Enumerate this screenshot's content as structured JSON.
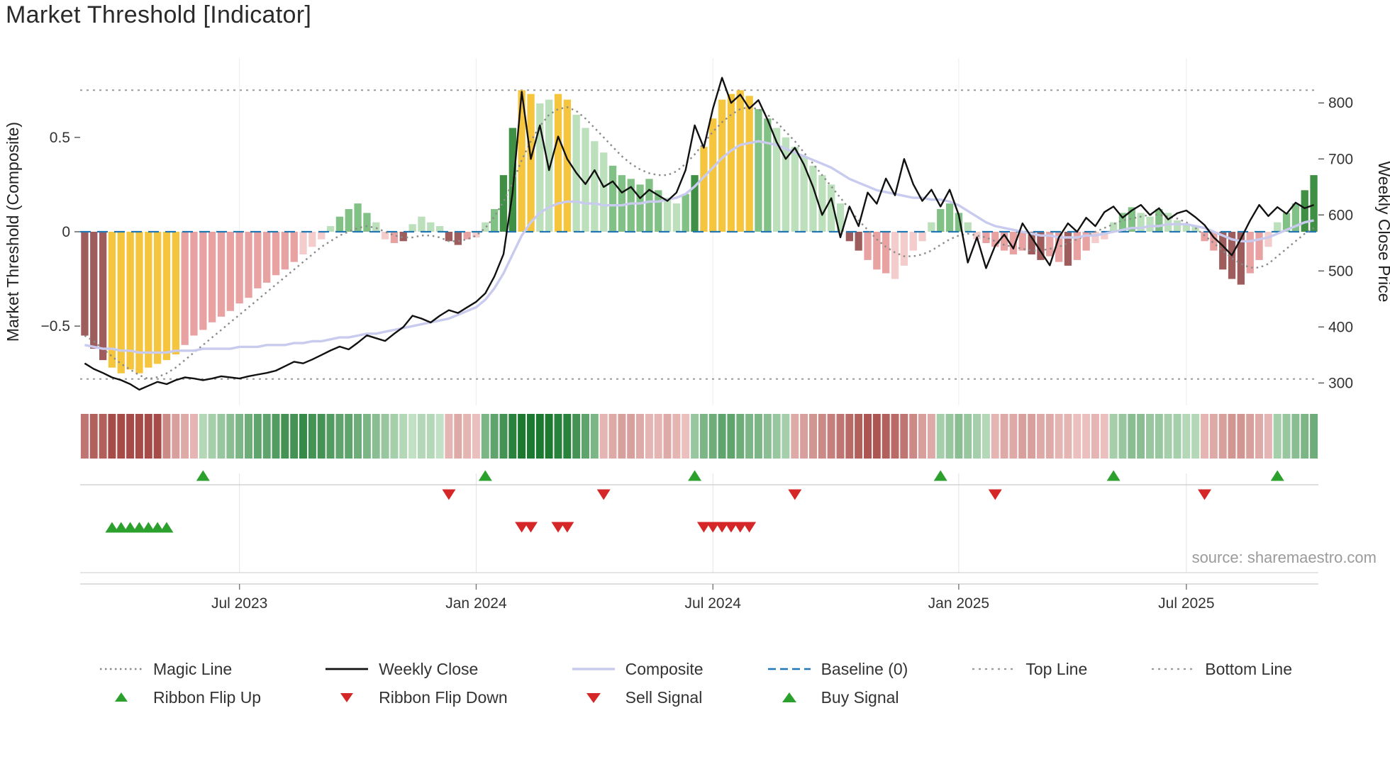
{
  "title": "Market Threshold [Indicator]",
  "source_text": "source: sharemaestro.com",
  "palette": {
    "magic_line": "#8a8a8a",
    "weekly_close": "#111111",
    "composite": "#c9cbee",
    "baseline": "#2077b4",
    "top_bottom_line": "#999999",
    "buy": "#2ca02c",
    "sell": "#d62728",
    "bar_dark_red": "#9e5c5c",
    "bar_red": "#e8a2a2",
    "bar_light_red": "#f3cccb",
    "bar_yellow": "#f5c53d",
    "bar_dark_green": "#3f8f44",
    "bar_green": "#82c185",
    "bar_light_green": "#bcdfbc"
  },
  "chart_data": {
    "type": "bar",
    "title": "Market Threshold [Indicator]",
    "left_axis": {
      "label": "Market Threshold (Composite)",
      "range": [
        -0.92,
        0.92
      ],
      "ticks": [
        {
          "v": 0.5,
          "label": "0.5"
        },
        {
          "v": 0,
          "label": "0"
        },
        {
          "v": -0.5,
          "label": "−0.5"
        }
      ]
    },
    "right_axis": {
      "label": "Weekly Close Price",
      "range": [
        260,
        880
      ],
      "ticks": [
        {
          "v": 800,
          "label": "800"
        },
        {
          "v": 700,
          "label": "700"
        },
        {
          "v": 600,
          "label": "600"
        },
        {
          "v": 500,
          "label": "500"
        },
        {
          "v": 400,
          "label": "400"
        },
        {
          "v": 300,
          "label": "300"
        }
      ]
    },
    "x_ticks": [
      {
        "label": "Jul 2023",
        "index": 17
      },
      {
        "label": "Jan 2024",
        "index": 43
      },
      {
        "label": "Jul 2024",
        "index": 69
      },
      {
        "label": "Jan 2025",
        "index": 96
      },
      {
        "label": "Jul 2025",
        "index": 121
      }
    ],
    "baseline": 0,
    "top_line": 0.75,
    "bottom_line": -0.78,
    "threshold_bars": {
      "values": [
        -0.55,
        -0.62,
        -0.68,
        -0.72,
        -0.75,
        -0.73,
        -0.75,
        -0.72,
        -0.7,
        -0.68,
        -0.65,
        -0.6,
        -0.55,
        -0.52,
        -0.48,
        -0.45,
        -0.42,
        -0.38,
        -0.35,
        -0.3,
        -0.27,
        -0.23,
        -0.2,
        -0.16,
        -0.12,
        -0.08,
        -0.04,
        0.03,
        0.08,
        0.12,
        0.15,
        0.1,
        0.05,
        -0.04,
        -0.06,
        -0.05,
        0.04,
        0.08,
        0.05,
        0.03,
        -0.05,
        -0.07,
        -0.04,
        -0.03,
        0.05,
        0.12,
        0.3,
        0.55,
        0.75,
        0.73,
        0.68,
        0.7,
        0.73,
        0.7,
        0.62,
        0.55,
        0.48,
        0.42,
        0.35,
        0.3,
        0.28,
        0.25,
        0.28,
        0.22,
        0.18,
        0.15,
        0.2,
        0.3,
        0.45,
        0.6,
        0.7,
        0.73,
        0.75,
        0.72,
        0.65,
        0.6,
        0.55,
        0.5,
        0.45,
        0.4,
        0.35,
        0.3,
        0.25,
        0.15,
        -0.05,
        -0.1,
        -0.15,
        -0.2,
        -0.22,
        -0.25,
        -0.18,
        -0.1,
        -0.05,
        0.05,
        0.12,
        0.15,
        0.1,
        0.05,
        -0.04,
        -0.06,
        -0.08,
        -0.1,
        -0.12,
        -0.1,
        -0.12,
        -0.15,
        -0.13,
        -0.16,
        -0.18,
        -0.15,
        -0.1,
        -0.06,
        -0.04,
        0.05,
        0.1,
        0.13,
        0.1,
        0.08,
        0.12,
        0.1,
        0.06,
        0.04,
        0.03,
        -0.05,
        -0.1,
        -0.2,
        -0.25,
        -0.28,
        -0.22,
        -0.15,
        -0.08,
        0.05,
        0.1,
        0.15,
        0.22,
        0.3
      ],
      "colors": [
        "dr",
        "dr",
        "dr",
        "y",
        "y",
        "y",
        "y",
        "y",
        "y",
        "y",
        "y",
        "r",
        "r",
        "r",
        "r",
        "r",
        "r",
        "r",
        "r",
        "r",
        "r",
        "r",
        "r",
        "r",
        "lr",
        "lr",
        "lr",
        "lg",
        "g",
        "g",
        "g",
        "g",
        "lg",
        "lr",
        "r",
        "dr",
        "lg",
        "lg",
        "lg",
        "lg",
        "dr",
        "dr",
        "r",
        "lr",
        "lg",
        "g",
        "dg",
        "dg",
        "y",
        "y",
        "lg",
        "lg",
        "y",
        "y",
        "lg",
        "lg",
        "lg",
        "lg",
        "g",
        "g",
        "g",
        "g",
        "g",
        "g",
        "lg",
        "lg",
        "g",
        "dg",
        "y",
        "y",
        "y",
        "y",
        "y",
        "y",
        "g",
        "g",
        "lg",
        "lg",
        "lg",
        "lg",
        "lg",
        "lg",
        "lg",
        "lg",
        "dr",
        "dr",
        "r",
        "r",
        "r",
        "lr",
        "lr",
        "lr",
        "lr",
        "lg",
        "g",
        "g",
        "g",
        "lg",
        "lr",
        "r",
        "r",
        "r",
        "r",
        "r",
        "dr",
        "dr",
        "r",
        "r",
        "dr",
        "r",
        "r",
        "lr",
        "lr",
        "lg",
        "g",
        "g",
        "lg",
        "lg",
        "g",
        "lg",
        "lg",
        "lg",
        "lg",
        "r",
        "r",
        "dr",
        "dr",
        "dr",
        "r",
        "r",
        "lr",
        "lg",
        "g",
        "g",
        "dg",
        "dg"
      ]
    },
    "weekly_close": [
      335,
      325,
      318,
      310,
      305,
      298,
      288,
      295,
      302,
      298,
      305,
      310,
      308,
      305,
      308,
      312,
      310,
      308,
      312,
      315,
      318,
      322,
      330,
      338,
      335,
      342,
      350,
      358,
      365,
      360,
      372,
      385,
      380,
      375,
      388,
      400,
      420,
      415,
      408,
      420,
      430,
      425,
      435,
      445,
      460,
      490,
      530,
      640,
      820,
      700,
      760,
      680,
      740,
      700,
      675,
      655,
      680,
      650,
      660,
      640,
      650,
      630,
      645,
      635,
      625,
      640,
      680,
      760,
      720,
      790,
      845,
      800,
      815,
      790,
      805,
      770,
      730,
      700,
      720,
      690,
      650,
      600,
      630,
      560,
      615,
      580,
      640,
      620,
      665,
      635,
      700,
      655,
      625,
      645,
      615,
      645,
      600,
      515,
      560,
      505,
      545,
      565,
      540,
      585,
      560,
      535,
      510,
      560,
      585,
      570,
      595,
      580,
      605,
      615,
      595,
      608,
      618,
      600,
      612,
      592,
      603,
      608,
      596,
      582,
      560,
      545,
      528,
      558,
      590,
      618,
      598,
      614,
      602,
      622,
      612,
      618
    ],
    "composite": [
      -0.6,
      -0.61,
      -0.62,
      -0.62,
      -0.63,
      -0.63,
      -0.64,
      -0.64,
      -0.64,
      -0.64,
      -0.63,
      -0.63,
      -0.63,
      -0.62,
      -0.62,
      -0.62,
      -0.62,
      -0.61,
      -0.61,
      -0.61,
      -0.6,
      -0.6,
      -0.6,
      -0.59,
      -0.59,
      -0.58,
      -0.58,
      -0.57,
      -0.56,
      -0.56,
      -0.55,
      -0.54,
      -0.54,
      -0.53,
      -0.52,
      -0.51,
      -0.5,
      -0.49,
      -0.48,
      -0.47,
      -0.46,
      -0.44,
      -0.42,
      -0.4,
      -0.36,
      -0.3,
      -0.22,
      -0.12,
      -0.02,
      0.05,
      0.1,
      0.13,
      0.15,
      0.16,
      0.16,
      0.15,
      0.15,
      0.14,
      0.14,
      0.14,
      0.15,
      0.15,
      0.16,
      0.16,
      0.17,
      0.18,
      0.2,
      0.24,
      0.29,
      0.34,
      0.39,
      0.43,
      0.46,
      0.47,
      0.48,
      0.47,
      0.46,
      0.44,
      0.42,
      0.4,
      0.38,
      0.36,
      0.34,
      0.31,
      0.28,
      0.26,
      0.24,
      0.22,
      0.21,
      0.2,
      0.19,
      0.18,
      0.18,
      0.17,
      0.17,
      0.16,
      0.14,
      0.11,
      0.08,
      0.05,
      0.03,
      0.02,
      0.01,
      0.0,
      -0.01,
      -0.02,
      -0.02,
      -0.03,
      -0.03,
      -0.03,
      -0.02,
      -0.02,
      -0.01,
      0.0,
      0.01,
      0.02,
      0.02,
      0.03,
      0.03,
      0.04,
      0.04,
      0.04,
      0.03,
      0.02,
      0.0,
      -0.02,
      -0.04,
      -0.05,
      -0.05,
      -0.04,
      -0.03,
      -0.01,
      0.01,
      0.03,
      0.05,
      0.06
    ],
    "magic_line": [
      -0.55,
      -0.58,
      -0.62,
      -0.66,
      -0.7,
      -0.73,
      -0.76,
      -0.78,
      -0.77,
      -0.75,
      -0.72,
      -0.68,
      -0.64,
      -0.6,
      -0.56,
      -0.52,
      -0.48,
      -0.44,
      -0.4,
      -0.36,
      -0.32,
      -0.28,
      -0.24,
      -0.2,
      -0.16,
      -0.12,
      -0.08,
      -0.05,
      -0.02,
      0.0,
      0.02,
      0.03,
      0.02,
      0.0,
      -0.02,
      -0.03,
      -0.03,
      -0.02,
      -0.02,
      -0.03,
      -0.05,
      -0.05,
      -0.04,
      -0.02,
      0.02,
      0.08,
      0.16,
      0.26,
      0.38,
      0.48,
      0.56,
      0.62,
      0.65,
      0.66,
      0.64,
      0.6,
      0.55,
      0.5,
      0.45,
      0.4,
      0.36,
      0.33,
      0.31,
      0.3,
      0.3,
      0.32,
      0.36,
      0.41,
      0.47,
      0.53,
      0.58,
      0.62,
      0.65,
      0.66,
      0.65,
      0.62,
      0.58,
      0.53,
      0.48,
      0.42,
      0.36,
      0.3,
      0.24,
      0.18,
      0.12,
      0.06,
      0.01,
      -0.04,
      -0.08,
      -0.11,
      -0.13,
      -0.13,
      -0.12,
      -0.1,
      -0.07,
      -0.04,
      -0.02,
      -0.01,
      -0.02,
      -0.03,
      -0.05,
      -0.07,
      -0.08,
      -0.09,
      -0.1,
      -0.1,
      -0.09,
      -0.08,
      -0.06,
      -0.04,
      -0.02,
      0.0,
      0.02,
      0.04,
      0.06,
      0.07,
      0.08,
      0.09,
      0.09,
      0.08,
      0.07,
      0.05,
      0.02,
      -0.02,
      -0.06,
      -0.1,
      -0.14,
      -0.17,
      -0.19,
      -0.19,
      -0.17,
      -0.13,
      -0.09,
      -0.05,
      -0.01,
      0.02
    ],
    "ribbon": [
      -0.6,
      -0.7,
      -0.7,
      -0.8,
      -0.8,
      -0.8,
      -0.8,
      -0.8,
      -0.8,
      -0.5,
      -0.4,
      -0.35,
      -0.3,
      0.3,
      0.35,
      0.4,
      0.45,
      0.5,
      0.55,
      0.6,
      0.6,
      0.65,
      0.7,
      0.7,
      0.75,
      0.7,
      0.7,
      0.65,
      0.6,
      0.6,
      0.55,
      0.5,
      0.45,
      0.4,
      0.35,
      0.3,
      0.25,
      0.3,
      0.3,
      0.25,
      -0.3,
      -0.35,
      -0.3,
      -0.25,
      0.5,
      0.6,
      0.7,
      0.8,
      0.9,
      0.9,
      0.85,
      0.85,
      0.8,
      0.8,
      0.7,
      0.6,
      0.5,
      -0.3,
      -0.35,
      -0.4,
      -0.4,
      -0.35,
      -0.3,
      -0.3,
      -0.35,
      -0.3,
      -0.25,
      0.4,
      0.5,
      0.55,
      0.6,
      0.6,
      0.55,
      0.5,
      0.5,
      0.45,
      0.4,
      0.35,
      -0.35,
      -0.4,
      -0.45,
      -0.5,
      -0.55,
      -0.6,
      -0.65,
      -0.7,
      -0.75,
      -0.75,
      -0.7,
      -0.65,
      -0.6,
      -0.5,
      -0.4,
      -0.35,
      0.35,
      0.4,
      0.45,
      0.4,
      0.35,
      0.3,
      -0.3,
      -0.35,
      -0.35,
      -0.4,
      -0.4,
      -0.35,
      -0.35,
      -0.3,
      -0.3,
      -0.25,
      -0.25,
      -0.3,
      -0.25,
      0.35,
      0.4,
      0.45,
      0.45,
      0.4,
      0.4,
      0.35,
      0.35,
      0.3,
      0.3,
      -0.3,
      -0.35,
      -0.4,
      -0.45,
      -0.45,
      -0.4,
      -0.35,
      -0.3,
      0.35,
      0.4,
      0.45,
      0.5,
      0.55
    ],
    "signals": {
      "ribbon_flip_up": [
        13,
        44,
        67,
        94,
        113,
        131
      ],
      "ribbon_flip_down": [
        40,
        57,
        78,
        100,
        123
      ],
      "buy": [
        3,
        4,
        5,
        6,
        7,
        8,
        9
      ],
      "sell": [
        48,
        49,
        52,
        53,
        68,
        69,
        70,
        71,
        72,
        73
      ]
    },
    "legend": [
      {
        "label": "Magic Line"
      },
      {
        "label": "Ribbon Flip Up"
      },
      {
        "label": "Weekly Close"
      },
      {
        "label": "Ribbon Flip Down"
      },
      {
        "label": "Composite"
      },
      {
        "label": "Sell Signal"
      },
      {
        "label": "Baseline (0)"
      },
      {
        "label": "Buy Signal"
      },
      {
        "label": "Top Line"
      },
      {
        "label": "Bottom Line"
      }
    ]
  }
}
